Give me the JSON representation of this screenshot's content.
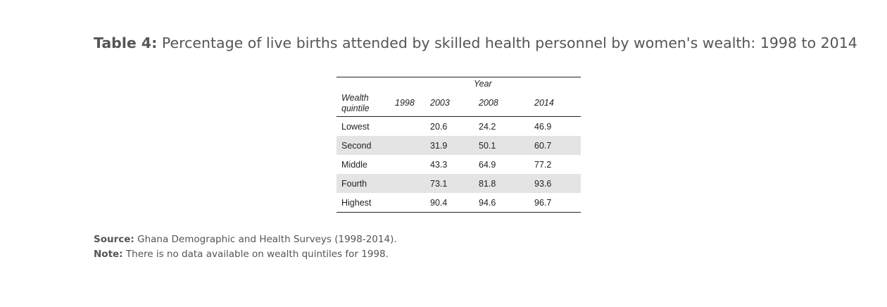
{
  "title": {
    "label": "Table 4:",
    "text": "Percentage of live births attended by skilled health personnel by women's wealth: 1998 to 2014"
  },
  "table": {
    "group_header": "Year",
    "row_header": "Wealth quintile",
    "columns": [
      "1998",
      "2003",
      "2008",
      "2014"
    ],
    "rows": [
      {
        "label": "Lowest",
        "values": [
          "",
          "20.6",
          "24.2",
          "46.9"
        ]
      },
      {
        "label": "Second",
        "values": [
          "",
          "31.9",
          "50.1",
          "60.7"
        ]
      },
      {
        "label": "Middle",
        "values": [
          "",
          "43.3",
          "64.9",
          "77.2"
        ]
      },
      {
        "label": "Fourth",
        "values": [
          "",
          "73.1",
          "81.8",
          "93.6"
        ]
      },
      {
        "label": "Highest",
        "values": [
          "",
          "90.4",
          "94.6",
          "96.7"
        ]
      }
    ]
  },
  "notes": {
    "source_label": "Source:",
    "source_text": "Ghana Demographic and Health Surveys (1998-2014).",
    "note_label": "Note:",
    "note_text": "There is no data available on wealth quintiles for 1998."
  },
  "chart_data": {
    "type": "table",
    "title": "Percentage of live births attended by skilled health personnel by women's wealth: 1998 to 2014",
    "columns": [
      "Wealth quintile",
      "1998",
      "2003",
      "2008",
      "2014"
    ],
    "rows": [
      [
        "Lowest",
        null,
        20.6,
        24.2,
        46.9
      ],
      [
        "Second",
        null,
        31.9,
        50.1,
        60.7
      ],
      [
        "Middle",
        null,
        43.3,
        64.9,
        77.2
      ],
      [
        "Fourth",
        null,
        73.1,
        81.8,
        93.6
      ],
      [
        "Highest",
        null,
        90.4,
        94.6,
        96.7
      ]
    ]
  }
}
